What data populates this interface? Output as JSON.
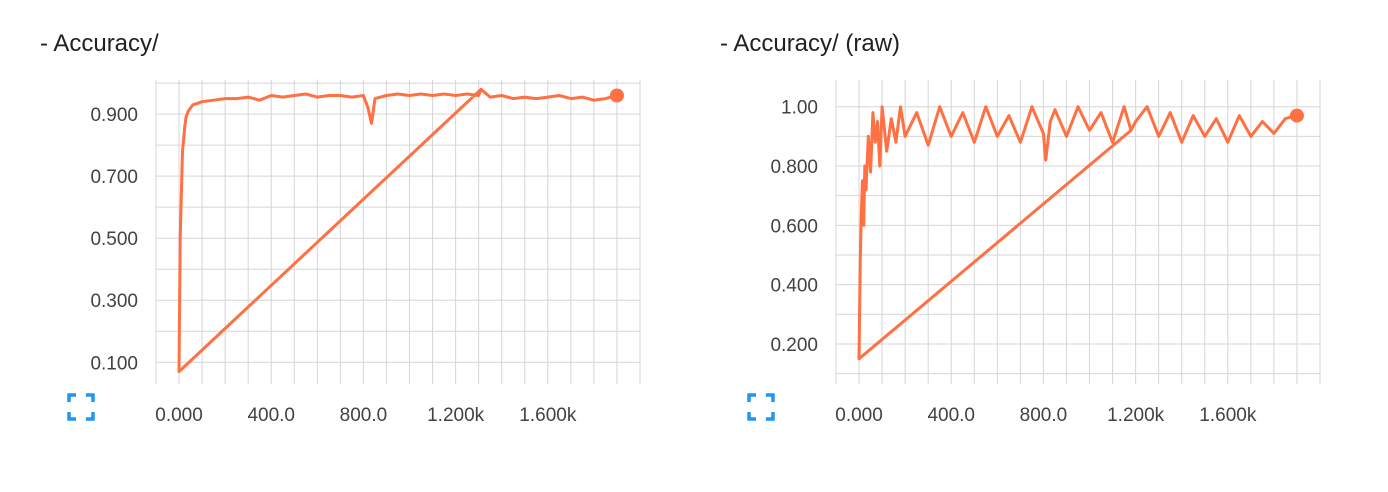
{
  "colors": {
    "series": "#ff7043",
    "grid": "#d6d6d6",
    "text": "#424242",
    "button": "#2196f3"
  },
  "expand_icon": "fullscreen-expand-icon",
  "chart_data": [
    {
      "type": "line",
      "title": "- Accuracy/",
      "xlabel": "",
      "ylabel": "",
      "xlim": [
        -100,
        2000
      ],
      "ylim": [
        0.03,
        1.01
      ],
      "xtick_values": [
        0,
        400,
        800,
        1200,
        1600
      ],
      "xtick_labels": [
        "0.000",
        "400.0",
        "800.0",
        "1.200k",
        "1.600k"
      ],
      "ytick_values": [
        0.1,
        0.3,
        0.5,
        0.7,
        0.9
      ],
      "ytick_labels": [
        "0.100",
        "0.300",
        "0.500",
        "0.700",
        "0.900"
      ],
      "grid": true,
      "legend": "none",
      "series": [
        {
          "x": [
            1310,
            0,
            5,
            10,
            15,
            20,
            25,
            30,
            40,
            50,
            60,
            80,
            100,
            150,
            200,
            250,
            300,
            350,
            400,
            450,
            500,
            550,
            600,
            650,
            700,
            750,
            800,
            820,
            835,
            850,
            900,
            950,
            1000,
            1050,
            1100,
            1150,
            1200,
            1250,
            1300,
            1310,
            1350,
            1400,
            1450,
            1500,
            1550,
            1600,
            1650,
            1700,
            1750,
            1800,
            1850,
            1900
          ],
          "y": [
            0.98,
            0.07,
            0.5,
            0.65,
            0.78,
            0.82,
            0.86,
            0.89,
            0.91,
            0.92,
            0.93,
            0.935,
            0.94,
            0.945,
            0.95,
            0.95,
            0.955,
            0.945,
            0.96,
            0.955,
            0.96,
            0.965,
            0.955,
            0.96,
            0.96,
            0.955,
            0.96,
            0.92,
            0.87,
            0.95,
            0.96,
            0.965,
            0.96,
            0.965,
            0.96,
            0.965,
            0.96,
            0.965,
            0.96,
            0.98,
            0.955,
            0.96,
            0.95,
            0.955,
            0.95,
            0.955,
            0.96,
            0.95,
            0.955,
            0.945,
            0.95,
            0.96
          ]
        }
      ]
    },
    {
      "type": "line",
      "title": "- Accuracy/ (raw)",
      "xlabel": "",
      "ylabel": "",
      "xlim": [
        -100,
        2000
      ],
      "ylim": [
        0.065,
        1.09
      ],
      "xtick_values": [
        0,
        400,
        800,
        1200,
        1600
      ],
      "xtick_labels": [
        "0.000",
        "400.0",
        "800.0",
        "1.200k",
        "1.600k"
      ],
      "ytick_values": [
        0.2,
        0.4,
        0.6,
        0.8,
        1.0
      ],
      "ytick_labels": [
        "0.200",
        "0.400",
        "0.600",
        "0.800",
        "1.00"
      ],
      "grid": true,
      "legend": "none",
      "series": [
        {
          "x": [
            1180,
            0,
            5,
            10,
            15,
            20,
            25,
            30,
            40,
            50,
            60,
            70,
            80,
            90,
            100,
            120,
            140,
            160,
            180,
            200,
            250,
            300,
            350,
            400,
            450,
            500,
            550,
            600,
            650,
            700,
            750,
            800,
            810,
            830,
            850,
            900,
            950,
            1000,
            1050,
            1100,
            1150,
            1180,
            1200,
            1250,
            1300,
            1350,
            1400,
            1450,
            1500,
            1550,
            1600,
            1650,
            1700,
            1750,
            1800,
            1850,
            1900
          ],
          "y": [
            0.92,
            0.15,
            0.47,
            0.65,
            0.75,
            0.6,
            0.8,
            0.72,
            0.9,
            0.78,
            0.98,
            0.88,
            0.95,
            0.8,
            1.0,
            0.85,
            0.96,
            0.88,
            1.0,
            0.9,
            0.98,
            0.87,
            1.0,
            0.9,
            0.98,
            0.88,
            1.0,
            0.9,
            0.97,
            0.88,
            1.0,
            0.91,
            0.82,
            0.95,
            0.99,
            0.9,
            1.0,
            0.92,
            0.98,
            0.88,
            1.0,
            0.92,
            0.95,
            1.0,
            0.9,
            0.98,
            0.88,
            0.97,
            0.9,
            0.96,
            0.88,
            0.97,
            0.9,
            0.95,
            0.91,
            0.96,
            0.97
          ]
        }
      ]
    }
  ]
}
